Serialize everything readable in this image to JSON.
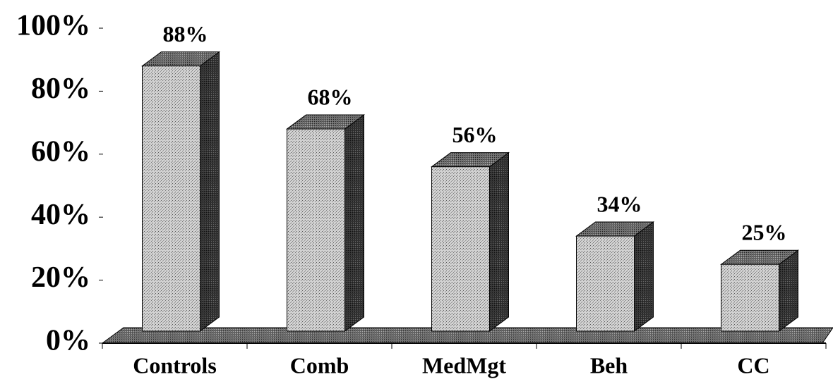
{
  "chart_data": {
    "type": "bar3d",
    "categories": [
      "Controls",
      "Comb",
      "MedMgt",
      "Beh",
      "CC"
    ],
    "values": [
      88,
      68,
      56,
      34,
      25
    ],
    "value_labels": [
      "88%",
      "68%",
      "56%",
      "34%",
      "25%"
    ],
    "ylim": [
      0,
      100
    ],
    "yticks": [
      {
        "value": 0,
        "label": "0%"
      },
      {
        "value": 20,
        "label": "20%"
      },
      {
        "value": 40,
        "label": "40%"
      },
      {
        "value": 60,
        "label": "60%"
      },
      {
        "value": 80,
        "label": "80%"
      },
      {
        "value": 100,
        "label": "100%"
      }
    ],
    "color": "#c8c8c8",
    "grid": false
  }
}
